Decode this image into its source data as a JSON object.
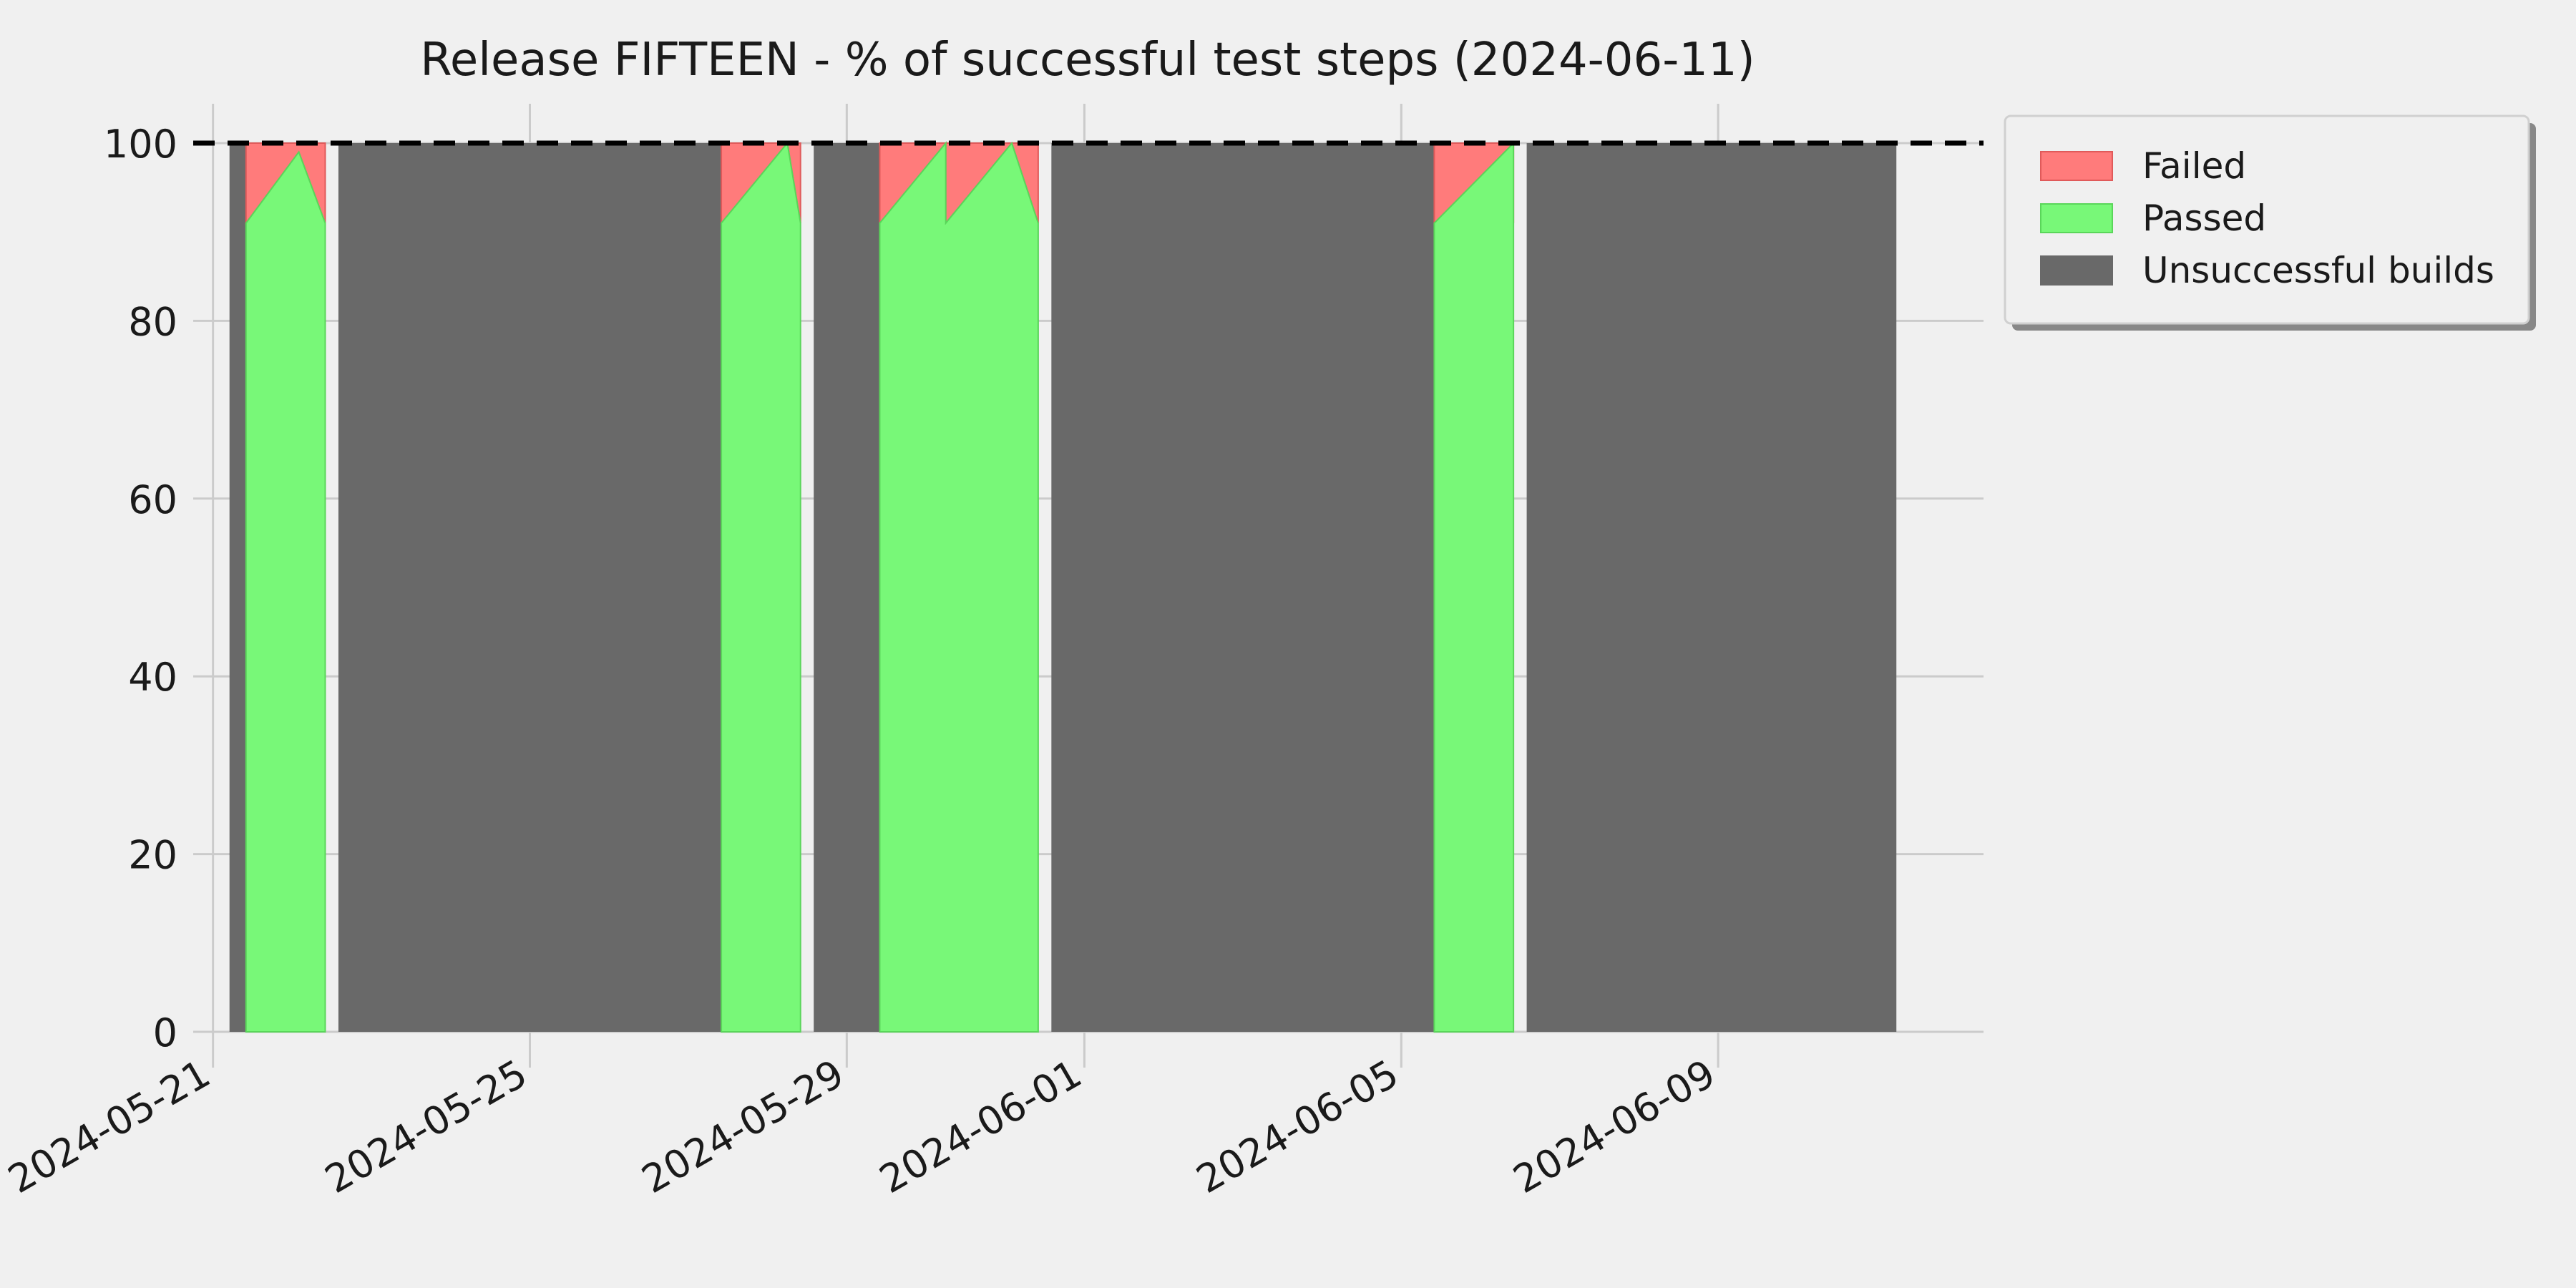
{
  "chart_data": {
    "type": "area",
    "title": "Release FIFTEEN - % of successful test steps (2024-06-11)",
    "xlabel": "",
    "ylabel": "",
    "ylim": [
      0,
      100
    ],
    "xlim": [
      "2024-05-21",
      "2024-06-12"
    ],
    "x_ticks": [
      "2024-05-21",
      "2024-05-25",
      "2024-05-29",
      "2024-06-01",
      "2024-06-05",
      "2024-06-09"
    ],
    "y_ticks": [
      0,
      20,
      40,
      60,
      80,
      100
    ],
    "reference_line": {
      "y": 100,
      "style": "dashed",
      "color": "#000000"
    },
    "grid": true,
    "legend_position": "outside-upper-right",
    "legend": [
      "Failed",
      "Passed",
      "Unsuccessful builds"
    ],
    "colors": {
      "failed": "#ff7b7b",
      "passed": "#78f878",
      "unsuccessful": "#696969",
      "background": "#f0f0f0",
      "grid": "#cbcbcb"
    },
    "unsuccessful_builds": [
      {
        "start": "2024-05-21 05:00",
        "end": "2024-05-21 18:00"
      },
      {
        "start": "2024-05-22 14:00",
        "end": "2024-05-27 14:00"
      },
      {
        "start": "2024-05-28 14:00",
        "end": "2024-05-29 14:00"
      },
      {
        "start": "2024-05-31 14:00",
        "end": "2024-06-05 14:00"
      },
      {
        "start": "2024-06-06 14:00",
        "end": "2024-06-11 06:00"
      }
    ],
    "passed_segments": [
      {
        "x": [
          "2024-05-21 10:00",
          "2024-05-22 02:00",
          "2024-05-22 10:00"
        ],
        "values": [
          91,
          99,
          91
        ]
      },
      {
        "x": [
          "2024-05-27 10:00",
          "2024-05-28 06:00",
          "2024-05-28 10:00"
        ],
        "values": [
          91,
          100,
          91
        ]
      },
      {
        "x": [
          "2024-05-29 10:00",
          "2024-05-30 06:00",
          "2024-05-30 06:00",
          "2024-05-31 02:00",
          "2024-05-31 10:00"
        ],
        "values": [
          91,
          100,
          91,
          100,
          91
        ]
      },
      {
        "x": [
          "2024-06-05 10:00",
          "2024-06-06 10:00",
          "2024-06-06 10:00"
        ],
        "values": [
          91,
          100,
          91
        ]
      }
    ]
  }
}
